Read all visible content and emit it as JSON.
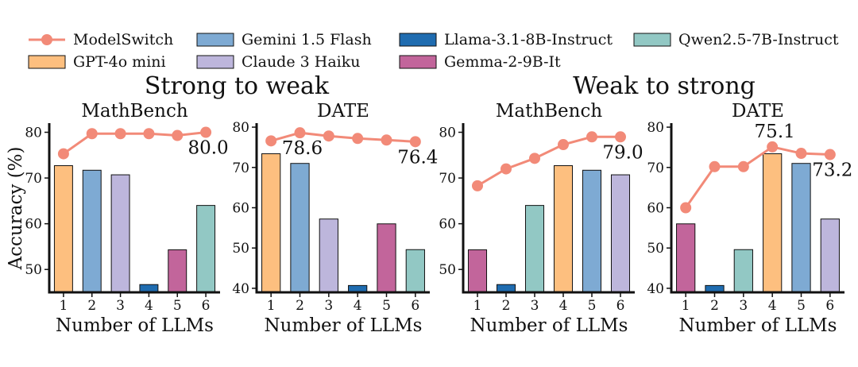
{
  "colors": {
    "ModelSwitch": "#f28a78",
    "GPT-4o mini": "#fdbf7f",
    "Gemini 1.5 Flash": "#7eaad3",
    "Llama-3.1-8B-Instruct": "#1f6cb0",
    "Claude 3 Haiku": "#bdb6dc",
    "Gemma-2-9B-It": "#c2659b",
    "Qwen2.5-7B-Instruct": "#92c8c4"
  },
  "legend": [
    {
      "name": "ModelSwitch",
      "kind": "line"
    },
    {
      "name": "Gemini 1.5 Flash",
      "kind": "bar"
    },
    {
      "name": "Llama-3.1-8B-Instruct",
      "kind": "bar"
    },
    {
      "name": "Qwen2.5-7B-Instruct",
      "kind": "bar"
    },
    {
      "name": "GPT-4o mini",
      "kind": "bar"
    },
    {
      "name": "Claude 3 Haiku",
      "kind": "bar"
    },
    {
      "name": "Gemma-2-9B-It",
      "kind": "bar"
    }
  ],
  "groups": [
    "Strong to weak",
    "Weak to strong"
  ],
  "ylabel": "Accuracy (%)",
  "chart_data": [
    {
      "type": "bar",
      "group": "Strong to weak",
      "title": "MathBench",
      "xlabel": "Number of LLMs",
      "categories": [
        "1",
        "2",
        "3",
        "4",
        "5",
        "6"
      ],
      "ylim": [
        45,
        82
      ],
      "yticks": [
        50,
        60,
        70,
        80
      ],
      "bars": [
        {
          "model": "GPT-4o mini",
          "value": 72.7
        },
        {
          "model": "Gemini 1.5 Flash",
          "value": 71.7
        },
        {
          "model": "Claude 3 Haiku",
          "value": 70.7
        },
        {
          "model": "Llama-3.1-8B-Instruct",
          "value": 46.7
        },
        {
          "model": "Gemma-2-9B-It",
          "value": 54.3
        },
        {
          "model": "Qwen2.5-7B-Instruct",
          "value": 64.0
        }
      ],
      "line": {
        "name": "ModelSwitch",
        "values": [
          75.3,
          79.7,
          79.7,
          79.7,
          79.3,
          80.0
        ]
      },
      "annotations": [
        {
          "index": 5,
          "text": "80.0",
          "pos": "below"
        }
      ]
    },
    {
      "type": "bar",
      "group": "Strong to weak",
      "title": "DATE",
      "xlabel": "Number of LLMs",
      "categories": [
        "1",
        "2",
        "3",
        "4",
        "5",
        "6"
      ],
      "ylim": [
        39,
        81
      ],
      "yticks": [
        40,
        50,
        60,
        70,
        80
      ],
      "bars": [
        {
          "model": "GPT-4o mini",
          "value": 73.4
        },
        {
          "model": "Gemini 1.5 Flash",
          "value": 71.0
        },
        {
          "model": "Claude 3 Haiku",
          "value": 57.2
        },
        {
          "model": "Llama-3.1-8B-Instruct",
          "value": 40.7
        },
        {
          "model": "Gemma-2-9B-It",
          "value": 56.0
        },
        {
          "model": "Qwen2.5-7B-Instruct",
          "value": 49.6
        }
      ],
      "line": {
        "name": "ModelSwitch",
        "values": [
          76.6,
          78.6,
          77.8,
          77.2,
          76.8,
          76.4
        ]
      },
      "annotations": [
        {
          "index": 1,
          "text": "78.6",
          "pos": "below"
        },
        {
          "index": 5,
          "text": "76.4",
          "pos": "below"
        }
      ]
    },
    {
      "type": "bar",
      "group": "Weak to strong",
      "title": "MathBench",
      "xlabel": "Number of LLMs",
      "categories": [
        "1",
        "2",
        "3",
        "4",
        "5",
        "6"
      ],
      "ylim": [
        45,
        82
      ],
      "yticks": [
        50,
        60,
        70,
        80
      ],
      "bars": [
        {
          "model": "Gemma-2-9B-It",
          "value": 54.3
        },
        {
          "model": "Llama-3.1-8B-Instruct",
          "value": 46.7
        },
        {
          "model": "Qwen2.5-7B-Instruct",
          "value": 64.0
        },
        {
          "model": "GPT-4o mini",
          "value": 72.7
        },
        {
          "model": "Gemini 1.5 Flash",
          "value": 71.7
        },
        {
          "model": "Claude 3 Haiku",
          "value": 70.7
        }
      ],
      "line": {
        "name": "ModelSwitch",
        "values": [
          68.3,
          72.0,
          74.3,
          77.3,
          79.0,
          79.0
        ]
      },
      "annotations": [
        {
          "index": 5,
          "text": "79.0",
          "pos": "below"
        }
      ]
    },
    {
      "type": "bar",
      "group": "Weak to strong",
      "title": "DATE",
      "xlabel": "Number of LLMs",
      "categories": [
        "1",
        "2",
        "3",
        "4",
        "5",
        "6"
      ],
      "ylim": [
        39,
        81
      ],
      "yticks": [
        40,
        50,
        60,
        70,
        80
      ],
      "bars": [
        {
          "model": "Gemma-2-9B-It",
          "value": 56.0
        },
        {
          "model": "Llama-3.1-8B-Instruct",
          "value": 40.7
        },
        {
          "model": "Qwen2.5-7B-Instruct",
          "value": 49.6
        },
        {
          "model": "GPT-4o mini",
          "value": 73.4
        },
        {
          "model": "Gemini 1.5 Flash",
          "value": 71.0
        },
        {
          "model": "Claude 3 Haiku",
          "value": 57.2
        }
      ],
      "line": {
        "name": "ModelSwitch",
        "values": [
          60.0,
          70.2,
          70.2,
          75.1,
          73.5,
          73.2
        ]
      },
      "annotations": [
        {
          "index": 3,
          "text": "75.1",
          "pos": "above"
        },
        {
          "index": 5,
          "text": "73.2",
          "pos": "below"
        }
      ]
    }
  ]
}
